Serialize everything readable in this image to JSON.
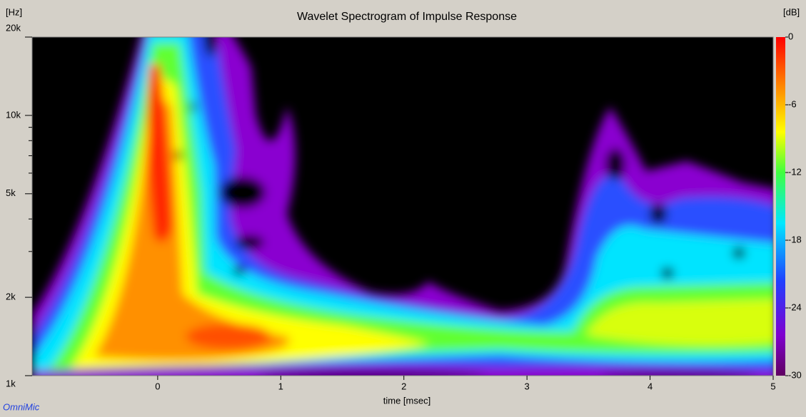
{
  "chart_data": {
    "type": "spectrogram",
    "title": "Wavelet Spectrogram of Impulse Response",
    "x_label": "time [msec]",
    "y_label": "[Hz]",
    "colorbar_label": "[dB]",
    "xlim": [
      -1.02,
      5
    ],
    "xticks": [
      0,
      1,
      2,
      3,
      4,
      5
    ],
    "ylim": [
      1000,
      20000
    ],
    "log_y": true,
    "yticks": [
      {
        "value": 1000,
        "label": "1k"
      },
      {
        "value": 2000,
        "label": "2k"
      },
      {
        "value": 5000,
        "label": "5k"
      },
      {
        "value": 10000,
        "label": "10k"
      },
      {
        "value": 20000,
        "label": "20k"
      }
    ],
    "y_minor_ticks": [
      3000,
      4000,
      6000,
      7000,
      8000,
      9000
    ],
    "clim": [
      -30,
      0
    ],
    "cticks": [
      0,
      -6,
      -12,
      -18,
      -24,
      -30
    ],
    "footer": "OmniMic"
  }
}
